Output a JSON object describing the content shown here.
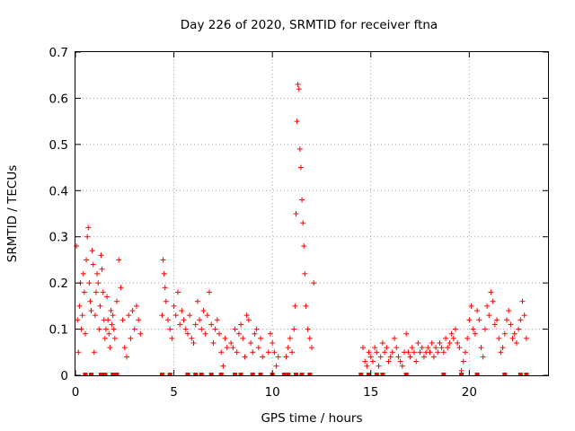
{
  "chart_data": {
    "type": "scatter",
    "title": "Day 226 of 2020, SRMTID for receiver ftna",
    "xlabel": "GPS time / hours",
    "ylabel": "SRMTID / TECUs",
    "xlim": [
      0,
      24
    ],
    "ylim": [
      0,
      0.7
    ],
    "xticks": [
      0,
      5,
      10,
      15,
      20
    ],
    "yticks": [
      0,
      0.1,
      0.2,
      0.3,
      0.4,
      0.5,
      0.6,
      0.7
    ],
    "xtick_labels": [
      "0",
      "5",
      "10",
      "15",
      "20"
    ],
    "ytick_labels": [
      "0",
      "0.1",
      "0.2",
      "0.3",
      "0.4",
      "0.5",
      "0.6",
      "0.7"
    ],
    "grid": true,
    "marker": "+",
    "color": "#ff0000",
    "series": [
      {
        "name": "SRMTID",
        "x": [
          0.05,
          0.1,
          0.15,
          0.2,
          0.25,
          0.3,
          0.35,
          0.4,
          0.45,
          0.5,
          0.55,
          0.6,
          0.65,
          0.7,
          0.75,
          0.8,
          0.85,
          0.9,
          0.95,
          1.0,
          1.05,
          1.1,
          1.15,
          1.2,
          1.25,
          1.3,
          1.35,
          1.4,
          1.45,
          1.5,
          1.55,
          1.6,
          1.65,
          1.7,
          1.75,
          1.8,
          1.85,
          1.9,
          1.95,
          2.0,
          2.1,
          2.2,
          2.3,
          2.4,
          2.5,
          2.6,
          2.7,
          2.8,
          2.9,
          3.0,
          3.1,
          3.2,
          3.3,
          4.4,
          4.45,
          4.5,
          4.55,
          4.6,
          4.7,
          4.8,
          4.9,
          5.0,
          5.1,
          5.2,
          5.3,
          5.4,
          5.5,
          5.6,
          5.7,
          5.8,
          5.9,
          6.0,
          6.1,
          6.2,
          6.3,
          6.4,
          6.5,
          6.6,
          6.7,
          6.8,
          6.9,
          7.0,
          7.1,
          7.2,
          7.3,
          7.4,
          7.5,
          7.6,
          7.7,
          7.9,
          8.0,
          8.1,
          8.2,
          8.3,
          8.4,
          8.5,
          8.6,
          8.7,
          8.8,
          8.9,
          9.0,
          9.1,
          9.2,
          9.3,
          9.4,
          9.5,
          9.8,
          9.9,
          10.0,
          10.1,
          10.2,
          10.3,
          10.7,
          10.8,
          10.9,
          11.0,
          11.1,
          11.15,
          11.2,
          11.25,
          11.3,
          11.35,
          11.4,
          11.45,
          11.5,
          11.55,
          11.6,
          11.65,
          11.7,
          11.8,
          11.9,
          12.0,
          12.1,
          14.6,
          14.7,
          14.8,
          14.9,
          15.0,
          15.1,
          15.2,
          15.3,
          15.4,
          15.5,
          15.6,
          15.7,
          15.8,
          15.9,
          16.0,
          16.1,
          16.2,
          16.3,
          16.4,
          16.5,
          16.6,
          16.7,
          16.8,
          16.9,
          17.0,
          17.1,
          17.2,
          17.3,
          17.4,
          17.5,
          17.6,
          17.7,
          17.8,
          17.9,
          18.0,
          18.1,
          18.2,
          18.3,
          18.4,
          18.5,
          18.6,
          18.7,
          18.8,
          18.9,
          19.0,
          19.1,
          19.2,
          19.3,
          19.4,
          19.5,
          19.6,
          19.7,
          19.8,
          19.9,
          20.0,
          20.1,
          20.2,
          20.3,
          20.4,
          20.5,
          20.6,
          20.7,
          20.8,
          20.9,
          21.0,
          21.1,
          21.2,
          21.3,
          21.4,
          21.5,
          21.6,
          21.7,
          21.8,
          21.9,
          22.0,
          22.1,
          22.2,
          22.3,
          22.4,
          22.5,
          22.6,
          22.7,
          22.8,
          22.9
        ],
        "y": [
          0.28,
          0.12,
          0.05,
          0.15,
          0.2,
          0.1,
          0.13,
          0.22,
          0.18,
          0.09,
          0.25,
          0.3,
          0.32,
          0.2,
          0.16,
          0.14,
          0.27,
          0.24,
          0.05,
          0.13,
          0.18,
          0.22,
          0.2,
          0.1,
          0.15,
          0.26,
          0.23,
          0.18,
          0.12,
          0.08,
          0.1,
          0.17,
          0.12,
          0.09,
          0.06,
          0.14,
          0.11,
          0.13,
          0.1,
          0.08,
          0.16,
          0.25,
          0.19,
          0.12,
          0.06,
          0.04,
          0.13,
          0.08,
          0.14,
          0.1,
          0.15,
          0.12,
          0.09,
          0.13,
          0.25,
          0.22,
          0.19,
          0.16,
          0.12,
          0.1,
          0.08,
          0.15,
          0.13,
          0.18,
          0.11,
          0.14,
          0.12,
          0.1,
          0.09,
          0.13,
          0.08,
          0.07,
          0.11,
          0.16,
          0.12,
          0.1,
          0.14,
          0.09,
          0.13,
          0.18,
          0.11,
          0.07,
          0.1,
          0.12,
          0.09,
          0.05,
          0.02,
          0.08,
          0.06,
          0.07,
          0.06,
          0.1,
          0.05,
          0.09,
          0.11,
          0.08,
          0.04,
          0.13,
          0.12,
          0.07,
          0.05,
          0.09,
          0.1,
          0.06,
          0.08,
          0.04,
          0.05,
          0.09,
          0.07,
          0.05,
          0.02,
          0.04,
          0.04,
          0.06,
          0.08,
          0.05,
          0.1,
          0.15,
          0.35,
          0.55,
          0.63,
          0.62,
          0.49,
          0.45,
          0.38,
          0.33,
          0.28,
          0.22,
          0.15,
          0.1,
          0.08,
          0.06,
          0.2,
          0.06,
          0.03,
          0.02,
          0.05,
          0.04,
          0.03,
          0.06,
          0.05,
          0.02,
          0.04,
          0.07,
          0.05,
          0.06,
          0.03,
          0.04,
          0.05,
          0.08,
          0.06,
          0.04,
          0.03,
          0.02,
          0.05,
          0.09,
          0.05,
          0.04,
          0.06,
          0.05,
          0.03,
          0.07,
          0.05,
          0.06,
          0.04,
          0.05,
          0.06,
          0.05,
          0.07,
          0.04,
          0.06,
          0.05,
          0.07,
          0.06,
          0.05,
          0.08,
          0.06,
          0.07,
          0.09,
          0.08,
          0.1,
          0.07,
          0.06,
          0.01,
          0.03,
          0.05,
          0.08,
          0.12,
          0.15,
          0.1,
          0.09,
          0.14,
          0.12,
          0.06,
          0.04,
          0.1,
          0.15,
          0.13,
          0.18,
          0.16,
          0.11,
          0.12,
          0.08,
          0.05,
          0.06,
          0.09,
          0.12,
          0.14,
          0.11,
          0.08,
          0.09,
          0.07,
          0.1,
          0.12,
          0.16,
          0.13,
          0.08
        ],
        "zero_x": [
          0.5,
          0.8,
          1.3,
          1.5,
          1.9,
          2.1,
          4.4,
          4.8,
          5.7,
          6.1,
          6.4,
          6.9,
          7.4,
          8.1,
          8.4,
          9.0,
          9.4,
          10.0,
          10.6,
          10.8,
          11.2,
          11.5,
          11.9,
          14.5,
          14.9,
          15.3,
          15.6,
          16.8,
          18.7,
          19.6,
          20.4,
          21.8,
          22.6,
          22.9
        ]
      }
    ]
  }
}
